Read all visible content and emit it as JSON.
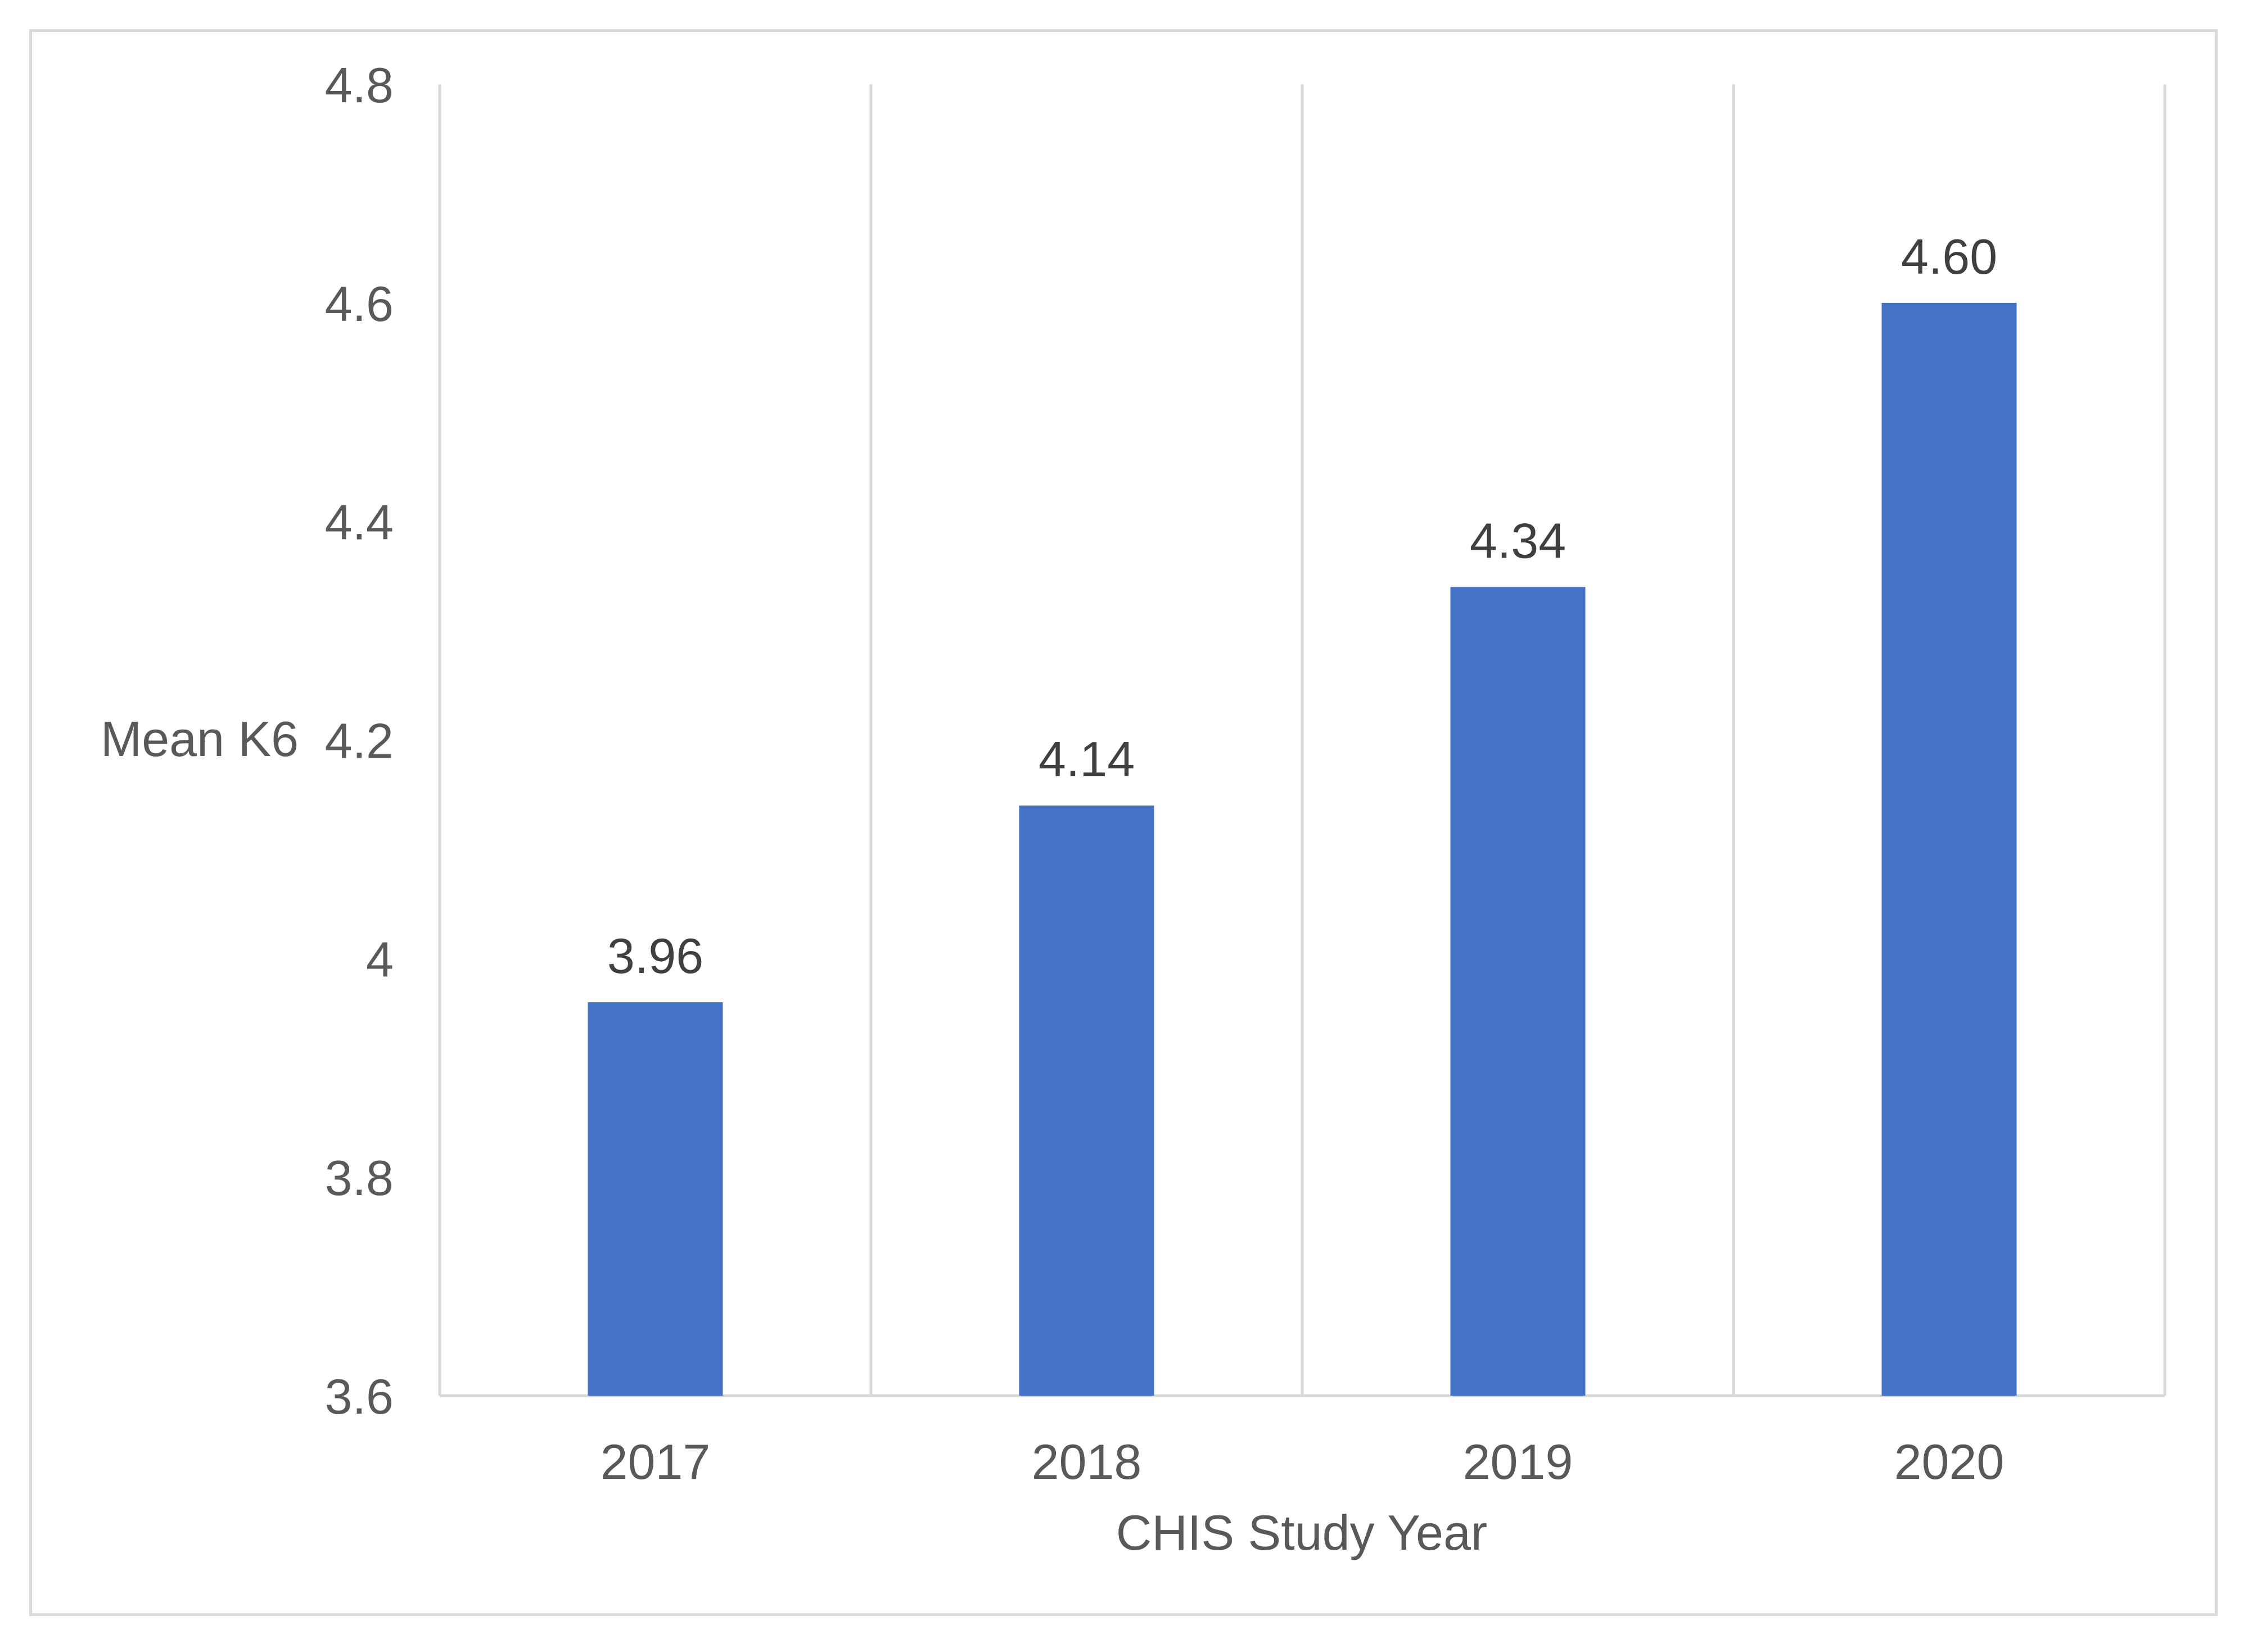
{
  "chart_data": {
    "type": "bar",
    "title": "",
    "categories": [
      "2017",
      "2018",
      "2019",
      "2020"
    ],
    "values": [
      3.96,
      4.14,
      4.34,
      4.6
    ],
    "value_labels": [
      "3.96",
      "4.14",
      "4.34",
      "4.60"
    ],
    "xlabel": "CHIS Study Year",
    "ylabel": "Mean K6",
    "ylim": [
      3.6,
      4.8
    ],
    "yticks": [
      3.6,
      3.8,
      4,
      4.2,
      4.4,
      4.6,
      4.8
    ],
    "ytick_labels": [
      "3.6",
      "3.8",
      "4",
      "4.2",
      "4.4",
      "4.6",
      "4.8"
    ],
    "grid": "vertical category separators",
    "colors": {
      "bar": "#4472c4",
      "grid": "#d9d9d9",
      "axis_text": "#595959",
      "data_label": "#404040",
      "frame": "#d9d9d9"
    }
  }
}
